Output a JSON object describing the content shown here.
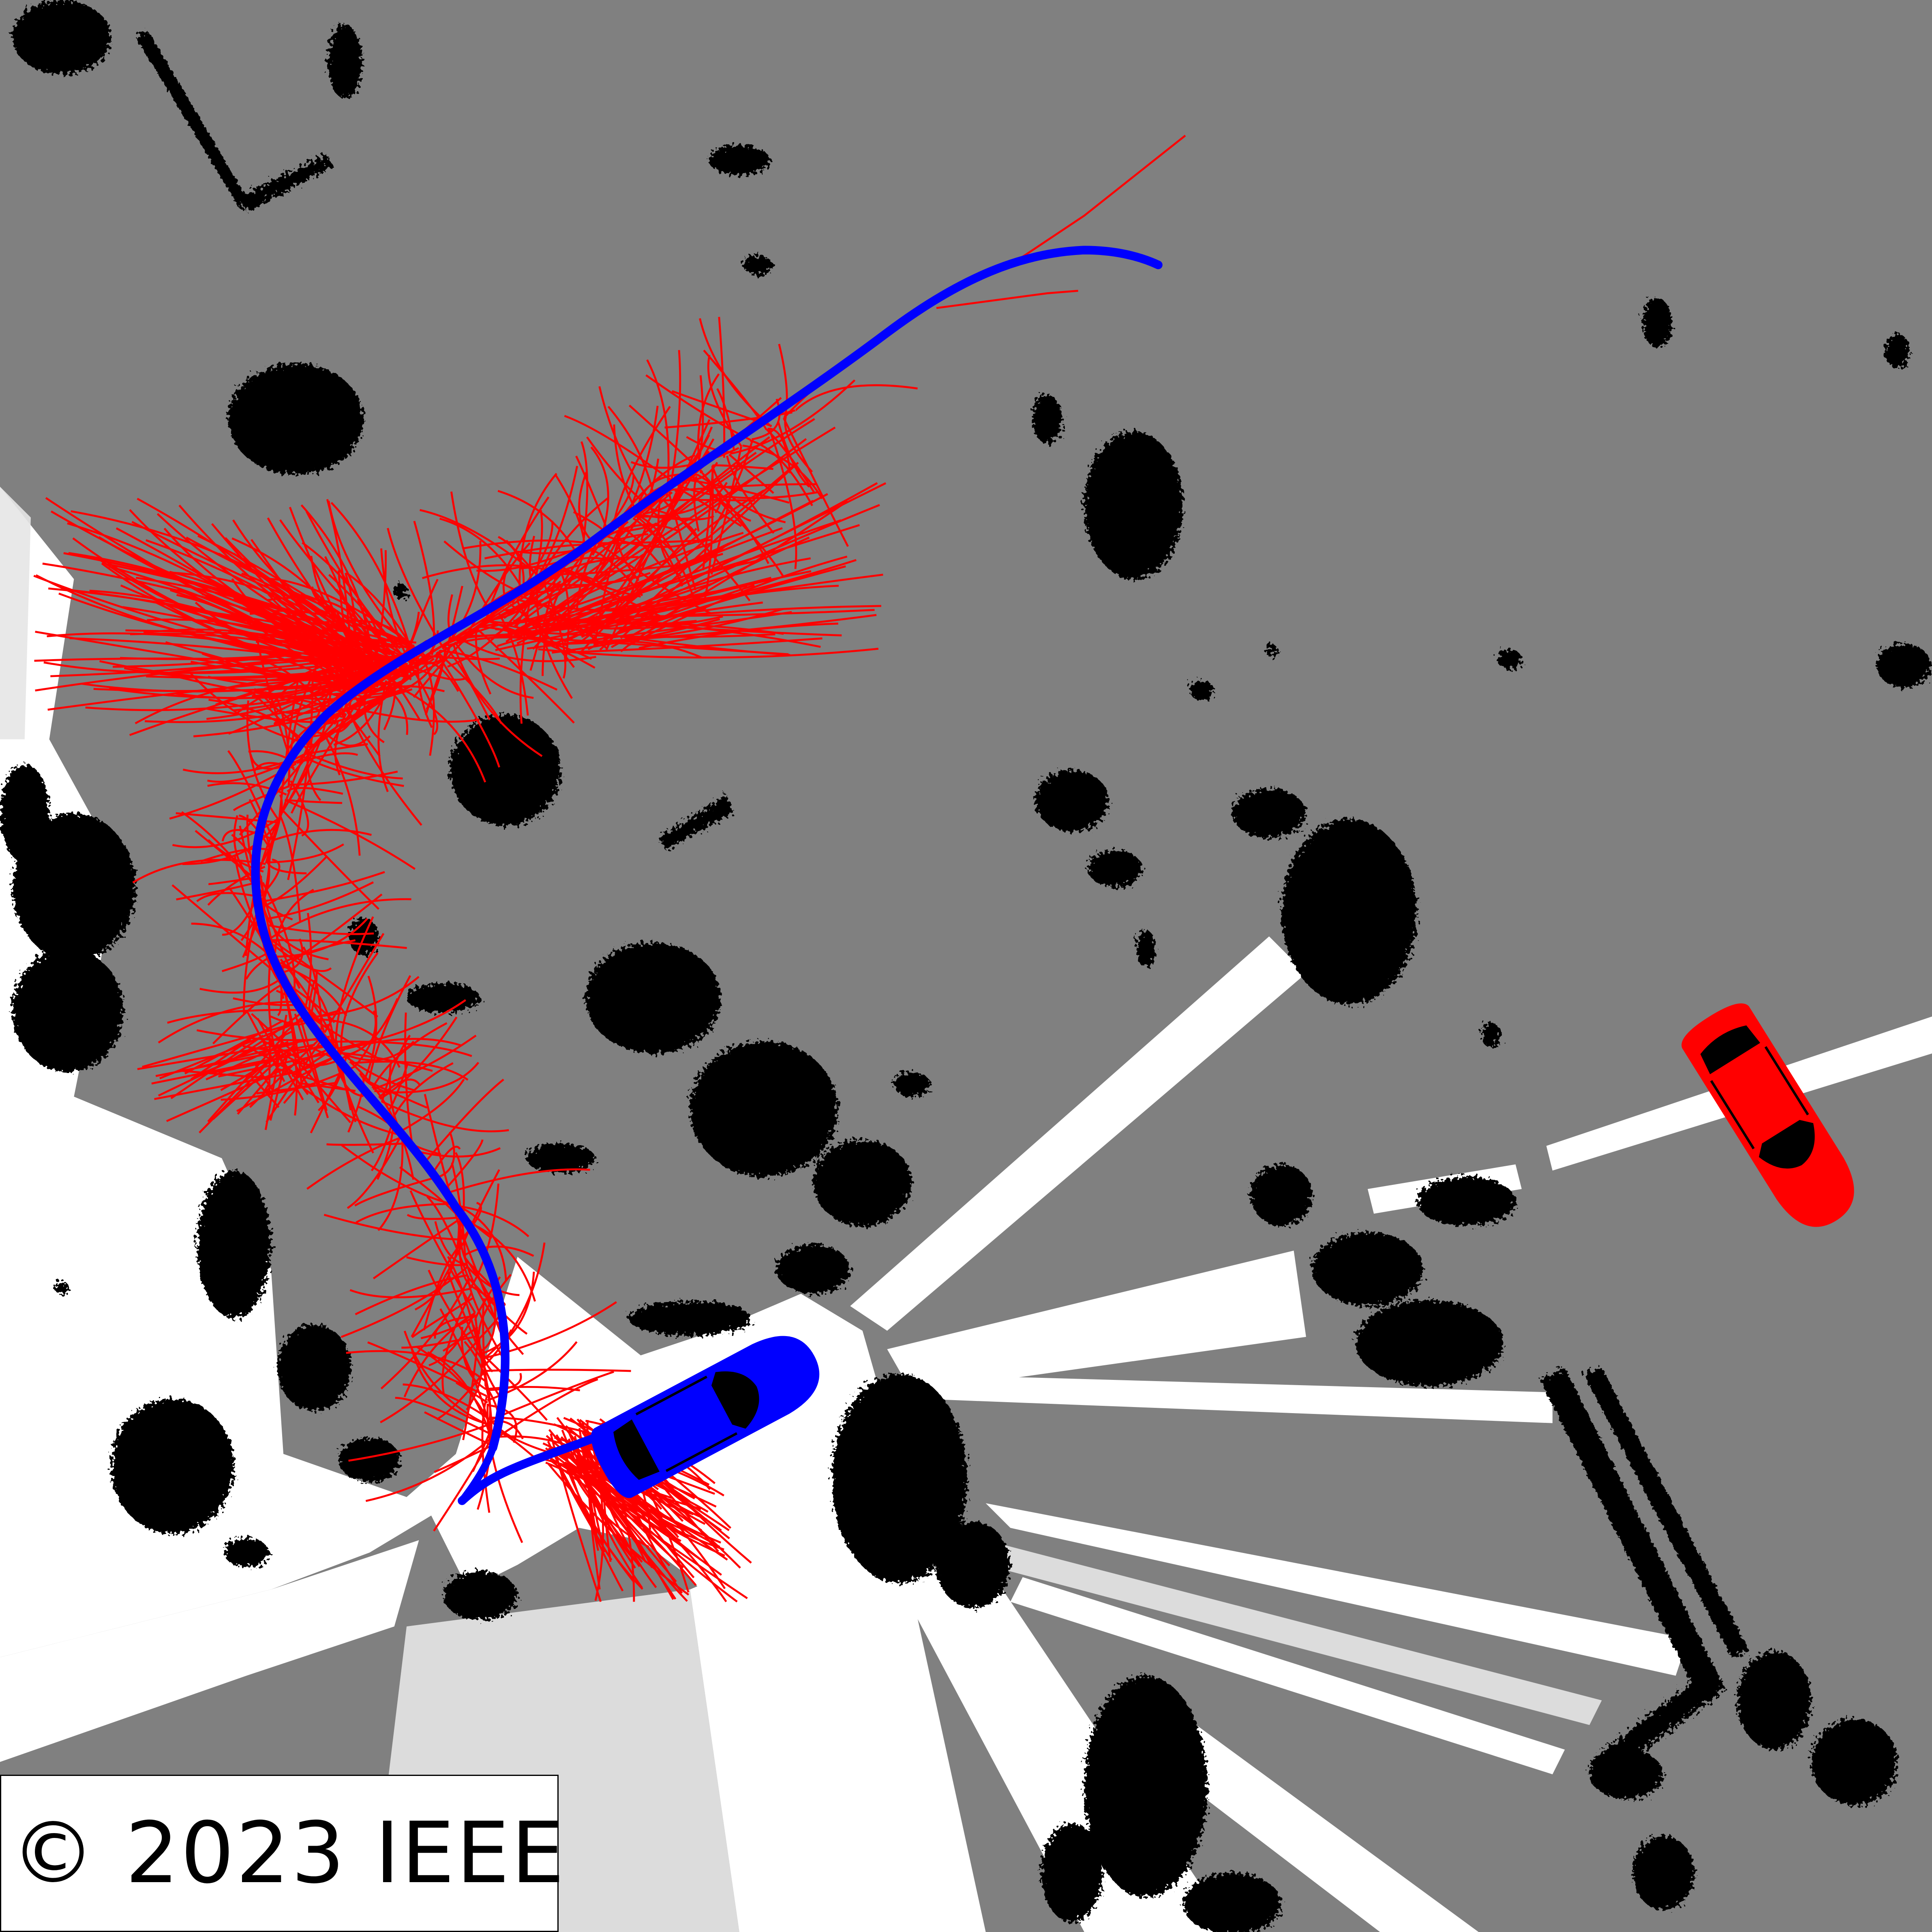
{
  "colors": {
    "unknown": "#808080",
    "free": "#ffffff",
    "obstacle": "#000000",
    "tree_branches": "#ff0000",
    "planned_path": "#0000ff",
    "ego_vehicle": "#0000ff",
    "other_vehicle": "#ff0000"
  },
  "map": {
    "ego_vehicle_icon": "car-top-view-icon",
    "other_vehicle_icon": "car-top-view-icon"
  },
  "copyright": {
    "text": "© 2023 IEEE"
  }
}
